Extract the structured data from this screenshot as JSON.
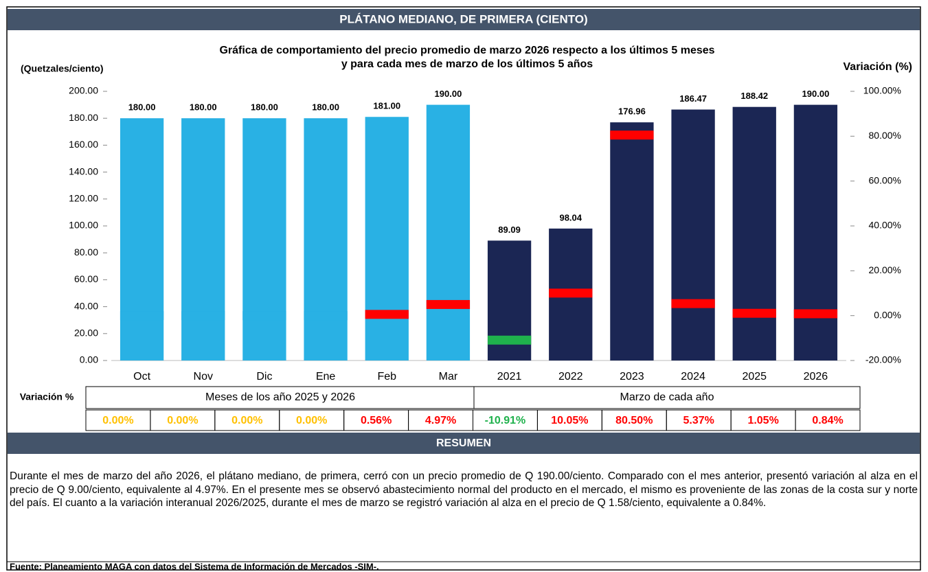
{
  "header": {
    "title": "PLÁTANO MEDIANO, DE PRIMERA (CIENTO)"
  },
  "chart_data": {
    "type": "bar",
    "title": "Gráfica de comportamiento del precio promedio de marzo 2026 respecto a los últimos 5 meses",
    "subtitle": "y para cada mes de marzo de los últimos 5 años",
    "y_label": "(Quetzales/ciento)",
    "y2_label": "Variación (%)",
    "categories": [
      "Oct",
      "Nov",
      "Dic",
      "Ene",
      "Feb",
      "Mar",
      "2021",
      "2022",
      "2023",
      "2024",
      "2025",
      "2026"
    ],
    "values": [
      180,
      180,
      180,
      180,
      181,
      190,
      89.09,
      98.04,
      176.96,
      186.47,
      188.42,
      190
    ],
    "value_labels": [
      "180.00",
      "180.00",
      "180.00",
      "180.00",
      "181.00",
      "190.00",
      "89.09",
      "98.04",
      "176.96",
      "186.47",
      "188.42",
      "190.00"
    ],
    "colors": [
      "#29b1e4",
      "#29b1e4",
      "#29b1e4",
      "#29b1e4",
      "#29b1e4",
      "#29b1e4",
      "#1b2654",
      "#1b2654",
      "#1b2654",
      "#1b2654",
      "#1b2654",
      "#1b2654"
    ],
    "ylim": [
      0,
      200
    ],
    "yticks": [
      {
        "value": 0,
        "label": "0.00"
      },
      {
        "value": 20,
        "label": "20.00"
      },
      {
        "value": 40,
        "label": "40.00"
      },
      {
        "value": 60,
        "label": "60.00"
      },
      {
        "value": 80,
        "label": "80.00"
      },
      {
        "value": 100,
        "label": "100.00"
      },
      {
        "value": 120,
        "label": "120.00"
      },
      {
        "value": 140,
        "label": "140.00"
      },
      {
        "value": 160,
        "label": "160.00"
      },
      {
        "value": 180,
        "label": "180.00"
      },
      {
        "value": 200,
        "label": "200.00"
      }
    ],
    "y2lim": [
      -20,
      100
    ],
    "y2ticks": [
      {
        "value": -20,
        "label": "-20.00%"
      },
      {
        "value": 0,
        "label": "0.00%"
      },
      {
        "value": 20,
        "label": "20.00%"
      },
      {
        "value": 40,
        "label": "40.00%"
      },
      {
        "value": 60,
        "label": "60.00%"
      },
      {
        "value": 80,
        "label": "80.00%"
      },
      {
        "value": 100,
        "label": "100.00%"
      }
    ],
    "variation": {
      "axis": "y2",
      "values": [
        0,
        0,
        0,
        0,
        0.56,
        4.97,
        -10.91,
        10.05,
        80.5,
        5.37,
        1.05,
        0.84
      ],
      "value_labels": [
        "0.00%",
        "0.00%",
        "0.00%",
        "0.00%",
        "0.56%",
        "4.97%",
        "-10.91%",
        "10.05%",
        "80.50%",
        "5.37%",
        "1.05%",
        "0.84%"
      ],
      "colors": [
        "#29b1e4",
        "#29b1e4",
        "#29b1e4",
        "#29b1e4",
        "#ff0000",
        "#ff0000",
        "#1fb14c",
        "#ff0000",
        "#ff0000",
        "#ff0000",
        "#ff0000",
        "#ff0000"
      ],
      "label_colors": [
        "#ffc000",
        "#ffc000",
        "#ffc000",
        "#ffc000",
        "#ff0000",
        "#ff0000",
        "#1fb14c",
        "#ff0000",
        "#ff0000",
        "#ff0000",
        "#ff0000",
        "#ff0000"
      ]
    }
  },
  "table": {
    "label": "Variación %",
    "groups": [
      "Meses de los año 2025 y 2026",
      "Marzo de cada año"
    ]
  },
  "summary": {
    "title": "RESUMEN",
    "text": "Durante el mes de marzo del año 2026, el plátano mediano, de primera, cerró con un precio promedio de Q 190.00/ciento. Comparado con el mes anterior, presentó variación al alza en el precio de Q 9.00/ciento, equivalente al 4.97%. En el presente mes se observó abastecimiento normal del producto en el mercado, el mismo es proveniente de las zonas de la costa sur y norte del país. El cuanto a la variación interanual 2026/2025, durante el mes de marzo se registró variación al alza en el precio de Q 1.58/ciento, equivalente a 0.84%."
  },
  "source": "Fuente: Planeamiento MAGA con datos del  Sistema de Información de Mercados -SIM-."
}
